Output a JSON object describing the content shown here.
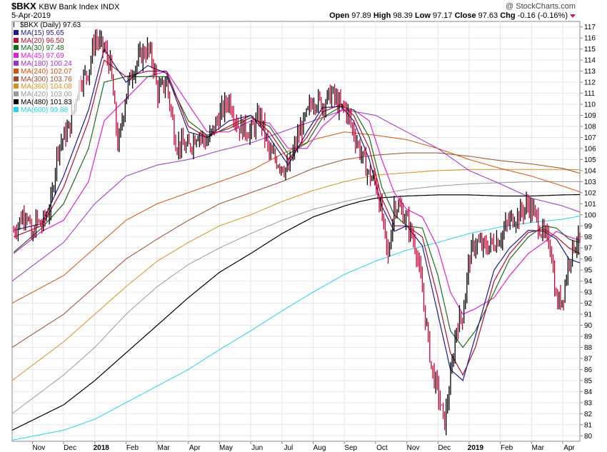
{
  "header": {
    "symbol": "$BKX",
    "description": "KBW Bank Index",
    "exchange": "INDX",
    "date": "5-Apr-2019",
    "credit": "@ StockCharts.com",
    "open_label": "Open",
    "open": "97.89",
    "high_label": "High",
    "high": "98.39",
    "low_label": "Low",
    "low": "97.17",
    "close_label": "Close",
    "close": "97.63",
    "chg_label": "Chg",
    "chg": "-0.16 (-0.16%)"
  },
  "legend": [
    {
      "label": "$BKX (Daily) 97.63",
      "color": "#000000",
      "marker": "ohlc"
    },
    {
      "label": "MA(15) 95.65",
      "color": "#1c1c8c"
    },
    {
      "label": "MA(20) 96.50",
      "color": "#b3112e"
    },
    {
      "label": "MA(30) 97.48",
      "color": "#1d6b1d"
    },
    {
      "label": "MA(45) 97.69",
      "color": "#e020d8"
    },
    {
      "label": "MA(180) 100.24",
      "color": "#9a32c8"
    },
    {
      "label": "MA(240) 102.07",
      "color": "#d1530f"
    },
    {
      "label": "MA(300) 103.76",
      "color": "#9a4a2a"
    },
    {
      "label": "MA(360) 104.08",
      "color": "#d89020"
    },
    {
      "label": "MA(420) 103.00",
      "color": "#9a9a9a"
    },
    {
      "label": "MA(480) 101.83",
      "color": "#000000"
    },
    {
      "label": "MA(600) 99.88",
      "color": "#22d4e6"
    }
  ],
  "chart_data": {
    "type": "line",
    "title": "$BKX KBW Bank Index INDX",
    "x_tick_labels": [
      "Nov",
      "Dec",
      "2018",
      "Feb",
      "Mar",
      "Apr",
      "May",
      "Jun",
      "Jul",
      "Aug",
      "Sep",
      "Oct",
      "Nov",
      "Dec",
      "2019",
      "Feb",
      "Mar",
      "Apr"
    ],
    "x_tick_months": [
      1,
      2,
      3,
      4,
      5,
      6,
      7,
      8,
      9,
      10,
      11,
      12,
      13,
      14,
      15,
      16,
      17,
      18
    ],
    "x_range_months": [
      0.35,
      18.55
    ],
    "ylim": [
      79.5,
      117.5
    ],
    "y_ticks": [
      80,
      81,
      82,
      83,
      84,
      85,
      86,
      87,
      88,
      89,
      90,
      91,
      92,
      93,
      94,
      95,
      96,
      97,
      98,
      99,
      100,
      101,
      102,
      103,
      104,
      105,
      106,
      107,
      108,
      109,
      110,
      111,
      112,
      113,
      114,
      115,
      116,
      117
    ],
    "price_series": {
      "name": "$BKX (Daily)",
      "color": "#000000",
      "x_months": [
        0.4,
        0.8,
        1.0,
        1.1,
        1.3,
        1.6,
        1.8,
        2.0,
        2.2,
        2.5,
        2.8,
        3.0,
        3.15,
        3.3,
        3.5,
        3.75,
        4.0,
        4.2,
        4.5,
        4.7,
        4.9,
        5.0,
        5.3,
        5.6,
        6.0,
        6.3,
        6.6,
        7.0,
        7.3,
        7.6,
        8.0,
        8.3,
        8.6,
        9.0,
        9.2,
        9.5,
        9.8,
        10.0,
        10.3,
        10.6,
        10.9,
        11.0,
        11.3,
        11.6,
        11.8,
        12.0,
        12.2,
        12.4,
        12.6,
        12.8,
        13.0,
        13.3,
        13.5,
        13.8,
        14.0,
        14.2,
        14.4,
        14.6,
        14.8,
        15.0,
        15.2,
        15.5,
        15.8,
        16.0,
        16.3,
        16.6,
        16.9,
        17.1,
        17.4,
        17.6,
        17.8,
        18.0,
        18.2,
        18.4,
        18.55
      ],
      "values": [
        98.5,
        100.5,
        97.4,
        99.5,
        99.0,
        101.0,
        106.0,
        107.0,
        108.0,
        112.0,
        113.0,
        116.0,
        115.5,
        115.0,
        113.5,
        106.0,
        111.0,
        113.0,
        114.5,
        115.0,
        113.5,
        111.0,
        112.0,
        106.5,
        106.0,
        107.5,
        106.5,
        109.0,
        110.5,
        108.0,
        107.5,
        109.0,
        105.5,
        104.5,
        104.0,
        107.0,
        109.0,
        110.5,
        110.0,
        111.0,
        109.5,
        110.0,
        107.5,
        105.0,
        103.5,
        103.0,
        100.0,
        96.0,
        101.0,
        100.5,
        99.5,
        97.0,
        93.0,
        86.0,
        84.0,
        81.0,
        85.0,
        90.0,
        91.0,
        96.0,
        97.5,
        97.0,
        97.5,
        98.0,
        99.5,
        100.0,
        101.0,
        100.0,
        98.0,
        97.5,
        92.0,
        92.5,
        96.0,
        97.5,
        97.63
      ]
    },
    "series": [
      {
        "name": "MA(15)",
        "value": 95.65,
        "color": "#1c1c8c",
        "width": 1.2,
        "x_months": [
          0.4,
          1.3,
          2.0,
          2.8,
          3.3,
          4.0,
          4.7,
          5.3,
          6.0,
          6.6,
          7.3,
          8.0,
          8.6,
          9.2,
          9.8,
          10.3,
          10.9,
          11.3,
          11.8,
          12.2,
          12.6,
          13.0,
          13.5,
          14.0,
          14.4,
          14.8,
          15.2,
          15.8,
          16.3,
          16.9,
          17.4,
          17.8,
          18.2,
          18.55
        ],
        "values": [
          98.6,
          99.2,
          103.5,
          109.5,
          115.0,
          112.0,
          113.5,
          112.8,
          107.5,
          107.0,
          108.5,
          109.0,
          107.0,
          104.5,
          107.5,
          109.7,
          109.8,
          108.5,
          105.0,
          100.8,
          98.5,
          99.0,
          97.2,
          91.0,
          86.0,
          85.0,
          89.0,
          95.0,
          97.0,
          98.6,
          98.5,
          97.8,
          96.0,
          95.65
        ]
      },
      {
        "name": "MA(20)",
        "value": 96.5,
        "color": "#b3112e",
        "width": 1.2,
        "x_months": [
          0.4,
          1.3,
          2.0,
          2.8,
          3.3,
          4.0,
          4.7,
          5.3,
          6.0,
          6.6,
          7.3,
          8.0,
          8.6,
          9.2,
          9.8,
          10.3,
          10.9,
          11.3,
          11.8,
          12.2,
          12.6,
          13.0,
          13.5,
          14.0,
          14.4,
          14.8,
          15.2,
          15.8,
          16.3,
          16.9,
          17.4,
          17.8,
          18.2,
          18.55
        ],
        "values": [
          98.0,
          99.0,
          102.5,
          108.5,
          114.0,
          112.5,
          113.0,
          113.0,
          108.0,
          107.0,
          108.0,
          109.0,
          107.5,
          105.0,
          107.0,
          109.3,
          110.0,
          109.0,
          106.0,
          101.5,
          99.0,
          99.0,
          98.0,
          92.5,
          87.5,
          85.5,
          88.0,
          94.0,
          96.5,
          98.4,
          98.7,
          98.0,
          97.0,
          96.5
        ]
      },
      {
        "name": "MA(30)",
        "value": 97.48,
        "color": "#1d6b1d",
        "width": 1.2,
        "x_months": [
          0.4,
          1.3,
          2.0,
          2.8,
          3.3,
          4.0,
          4.7,
          5.3,
          6.0,
          6.6,
          7.3,
          8.0,
          8.6,
          9.2,
          9.8,
          10.3,
          10.9,
          11.3,
          11.8,
          12.2,
          12.6,
          13.0,
          13.5,
          14.0,
          14.4,
          14.8,
          15.2,
          15.8,
          16.3,
          16.9,
          17.4,
          17.8,
          18.2,
          18.55
        ],
        "values": [
          96.6,
          98.8,
          101.0,
          106.0,
          112.0,
          112.5,
          112.5,
          112.5,
          108.5,
          107.2,
          107.8,
          108.8,
          108.0,
          105.5,
          106.5,
          108.8,
          109.8,
          109.5,
          107.0,
          102.5,
          100.0,
          99.0,
          98.8,
          94.5,
          89.5,
          88.0,
          89.5,
          93.0,
          96.0,
          98.0,
          99.0,
          98.8,
          97.8,
          97.48
        ]
      },
      {
        "name": "MA(45)",
        "value": 97.69,
        "color": "#e020d8",
        "width": 1.2,
        "x_months": [
          0.4,
          1.3,
          2.0,
          2.8,
          3.3,
          4.0,
          4.7,
          5.3,
          6.0,
          6.6,
          7.3,
          8.0,
          8.6,
          9.2,
          9.8,
          10.3,
          10.9,
          11.3,
          11.8,
          12.2,
          12.6,
          13.0,
          13.5,
          14.0,
          14.4,
          14.8,
          15.2,
          15.8,
          16.3,
          16.9,
          17.4,
          17.8,
          18.2,
          18.55
        ],
        "values": [
          96.5,
          98.5,
          99.5,
          103.0,
          108.5,
          110.5,
          112.5,
          113.0,
          110.0,
          107.5,
          107.5,
          108.5,
          108.3,
          106.0,
          106.0,
          108.0,
          109.5,
          109.5,
          108.5,
          105.0,
          102.0,
          100.5,
          99.8,
          97.0,
          93.0,
          91.0,
          91.5,
          92.5,
          94.5,
          96.5,
          97.5,
          98.5,
          98.0,
          97.69
        ]
      },
      {
        "name": "MA(180)",
        "value": 100.24,
        "color": "#9a32c8",
        "width": 1.0,
        "x_months": [
          0.35,
          2.0,
          3.0,
          4.0,
          5.0,
          6.0,
          7.0,
          8.0,
          9.0,
          10.0,
          11.0,
          12.0,
          13.0,
          14.0,
          15.0,
          16.0,
          17.0,
          18.0,
          18.55
        ],
        "values": [
          94.0,
          97.5,
          101.0,
          103.5,
          104.5,
          105.0,
          105.8,
          106.5,
          107.5,
          108.5,
          109.5,
          109.0,
          107.5,
          106.0,
          104.0,
          102.8,
          101.5,
          100.8,
          100.24
        ]
      },
      {
        "name": "MA(240)",
        "value": 102.07,
        "color": "#d1530f",
        "width": 1.0,
        "x_months": [
          0.35,
          2.0,
          3.0,
          4.0,
          5.0,
          6.0,
          7.0,
          8.0,
          9.0,
          10.0,
          11.0,
          12.0,
          13.0,
          14.0,
          15.0,
          16.0,
          17.0,
          18.0,
          18.55
        ],
        "values": [
          92.0,
          94.5,
          97.0,
          99.5,
          101.0,
          102.0,
          103.0,
          104.0,
          105.5,
          106.8,
          107.5,
          107.2,
          106.8,
          106.0,
          105.0,
          104.2,
          103.5,
          102.6,
          102.07
        ]
      },
      {
        "name": "MA(300)",
        "value": 103.76,
        "color": "#9a4a2a",
        "width": 1.0,
        "x_months": [
          0.35,
          2.0,
          3.0,
          4.0,
          5.0,
          6.0,
          7.0,
          8.0,
          9.0,
          10.0,
          11.0,
          12.0,
          13.0,
          14.0,
          15.0,
          16.0,
          17.0,
          18.0,
          18.55
        ],
        "values": [
          88.0,
          91.0,
          93.5,
          96.0,
          97.8,
          99.5,
          101.0,
          102.0,
          103.0,
          104.2,
          105.0,
          105.4,
          105.6,
          105.6,
          105.3,
          104.9,
          104.6,
          104.2,
          103.76
        ]
      },
      {
        "name": "MA(360)",
        "value": 104.08,
        "color": "#d89020",
        "width": 1.0,
        "x_months": [
          0.35,
          2.0,
          3.0,
          4.0,
          5.0,
          6.0,
          7.0,
          8.0,
          9.0,
          10.0,
          11.0,
          12.0,
          13.0,
          14.0,
          15.0,
          16.0,
          17.0,
          18.0,
          18.55
        ],
        "values": [
          85.0,
          88.5,
          91.0,
          93.5,
          95.8,
          97.5,
          99.0,
          100.0,
          101.2,
          102.2,
          103.0,
          103.6,
          103.8,
          104.0,
          104.1,
          104.1,
          104.1,
          104.1,
          104.08
        ]
      },
      {
        "name": "MA(420)",
        "value": 103.0,
        "color": "#9a9a9a",
        "width": 1.0,
        "x_months": [
          0.35,
          2.0,
          3.0,
          4.0,
          5.0,
          6.0,
          7.0,
          8.0,
          9.0,
          10.0,
          11.0,
          12.0,
          13.0,
          14.0,
          15.0,
          16.0,
          17.0,
          18.0,
          18.55
        ],
        "values": [
          82.0,
          85.5,
          88.0,
          91.0,
          93.5,
          95.5,
          97.0,
          98.3,
          99.5,
          100.5,
          101.2,
          101.8,
          102.3,
          102.6,
          102.8,
          102.9,
          103.0,
          103.0,
          103.0
        ]
      },
      {
        "name": "MA(480)",
        "value": 101.83,
        "color": "#000000",
        "width": 1.2,
        "x_months": [
          0.35,
          2.0,
          3.0,
          4.0,
          5.0,
          6.0,
          7.0,
          8.0,
          9.0,
          10.0,
          11.0,
          11.5,
          12.0,
          13.0,
          14.0,
          15.0,
          16.0,
          17.0,
          18.0,
          18.55
        ],
        "values": [
          80.5,
          82.8,
          85.0,
          87.5,
          90.0,
          92.5,
          94.8,
          96.5,
          98.3,
          99.8,
          100.8,
          101.2,
          101.5,
          101.7,
          101.8,
          101.8,
          101.7,
          101.7,
          101.8,
          101.83
        ]
      },
      {
        "name": "MA(600)",
        "value": 99.88,
        "color": "#22d4e6",
        "width": 1.0,
        "x_months": [
          0.35,
          2.0,
          3.0,
          4.0,
          5.0,
          6.0,
          7.0,
          8.0,
          9.0,
          10.0,
          11.0,
          12.0,
          13.0,
          14.0,
          15.0,
          16.0,
          17.0,
          18.0,
          18.55
        ],
        "values": [
          79.6,
          80.5,
          81.5,
          83.0,
          84.5,
          86.0,
          87.8,
          89.5,
          91.3,
          93.0,
          94.6,
          95.8,
          96.8,
          97.5,
          98.3,
          98.9,
          99.3,
          99.6,
          99.88
        ]
      }
    ]
  }
}
